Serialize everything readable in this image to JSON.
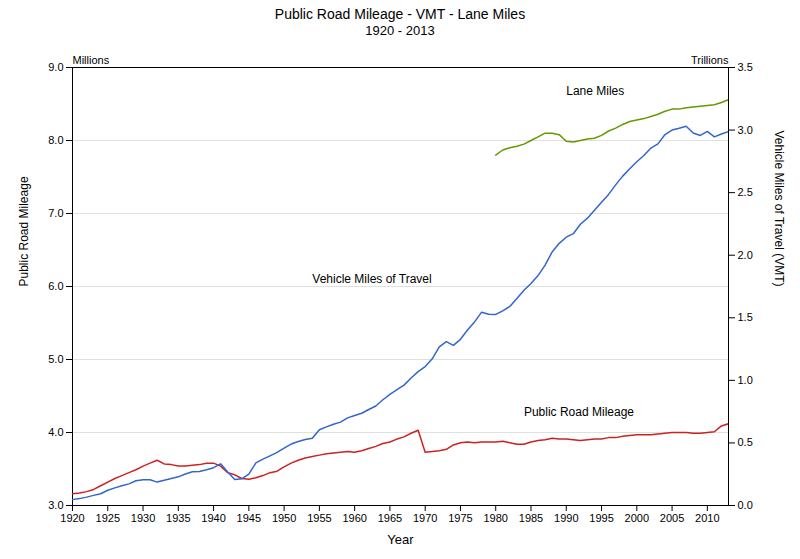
{
  "chart_data": {
    "type": "line",
    "title": "Public Road Mileage - VMT - Lane Miles",
    "subtitle": "1920 - 2013",
    "xlabel": "Year",
    "ylabel": "Public Road Mileage",
    "y2label": "Vehicle Miles of Travel (VMT)",
    "y_unit": "Millions",
    "y2_unit": "Trillions",
    "x": [
      1920,
      1921,
      1922,
      1923,
      1924,
      1925,
      1926,
      1927,
      1928,
      1929,
      1930,
      1931,
      1932,
      1933,
      1934,
      1935,
      1936,
      1937,
      1938,
      1939,
      1940,
      1941,
      1942,
      1943,
      1944,
      1945,
      1946,
      1947,
      1948,
      1949,
      1950,
      1951,
      1952,
      1953,
      1954,
      1955,
      1956,
      1957,
      1958,
      1959,
      1960,
      1961,
      1962,
      1963,
      1964,
      1965,
      1966,
      1967,
      1968,
      1969,
      1970,
      1971,
      1972,
      1973,
      1974,
      1975,
      1976,
      1977,
      1978,
      1979,
      1980,
      1981,
      1982,
      1983,
      1984,
      1985,
      1986,
      1987,
      1988,
      1989,
      1990,
      1991,
      1992,
      1993,
      1994,
      1995,
      1996,
      1997,
      1998,
      1999,
      2000,
      2001,
      2002,
      2003,
      2004,
      2005,
      2006,
      2007,
      2008,
      2009,
      2010,
      2011,
      2012,
      2013
    ],
    "series": [
      {
        "color": "#cc2222",
        "values": [
          3.16,
          3.17,
          3.19,
          3.22,
          3.27,
          3.32,
          3.37,
          3.41,
          3.45,
          3.49,
          3.54,
          3.58,
          3.62,
          3.57,
          3.56,
          3.54,
          3.54,
          3.55,
          3.56,
          3.58,
          3.58,
          3.54,
          3.45,
          3.42,
          3.37,
          3.36,
          3.38,
          3.41,
          3.45,
          3.47,
          3.53,
          3.58,
          3.62,
          3.65,
          3.67,
          3.69,
          3.71,
          3.72,
          3.73,
          3.74,
          3.73,
          3.75,
          3.78,
          3.81,
          3.85,
          3.87,
          3.91,
          3.94,
          3.99,
          4.03,
          3.73,
          3.74,
          3.75,
          3.77,
          3.83,
          3.86,
          3.87,
          3.86,
          3.87,
          3.87,
          3.87,
          3.88,
          3.86,
          3.84,
          3.84,
          3.87,
          3.89,
          3.9,
          3.92,
          3.91,
          3.91,
          3.9,
          3.89,
          3.9,
          3.91,
          3.91,
          3.93,
          3.93,
          3.95,
          3.96,
          3.97,
          3.97,
          3.97,
          3.98,
          3.99,
          4.0,
          4.0,
          4.0,
          3.99,
          3.99,
          4.0,
          4.01,
          4.09,
          4.12
        ]
      },
      {
        "color": "#3366cc",
        "axis": "y2",
        "values": [
          0.047,
          0.055,
          0.067,
          0.081,
          0.094,
          0.122,
          0.141,
          0.158,
          0.173,
          0.198,
          0.206,
          0.206,
          0.187,
          0.201,
          0.216,
          0.229,
          0.252,
          0.27,
          0.271,
          0.285,
          0.302,
          0.333,
          0.268,
          0.208,
          0.213,
          0.25,
          0.341,
          0.371,
          0.397,
          0.424,
          0.458,
          0.491,
          0.512,
          0.527,
          0.537,
          0.605,
          0.628,
          0.649,
          0.666,
          0.7,
          0.719,
          0.737,
          0.767,
          0.795,
          0.845,
          0.888,
          0.925,
          0.962,
          1.019,
          1.07,
          1.11,
          1.172,
          1.267,
          1.309,
          1.28,
          1.328,
          1.402,
          1.467,
          1.545,
          1.529,
          1.527,
          1.555,
          1.591,
          1.654,
          1.72,
          1.774,
          1.837,
          1.921,
          2.026,
          2.095,
          2.144,
          2.172,
          2.247,
          2.296,
          2.36,
          2.423,
          2.486,
          2.562,
          2.632,
          2.691,
          2.747,
          2.797,
          2.856,
          2.89,
          2.964,
          3.0,
          3.014,
          3.031,
          2.976,
          2.957,
          2.989,
          2.946,
          2.969,
          2.988
        ]
      },
      {
        "color": "#669900",
        "values": [
          null,
          null,
          null,
          null,
          null,
          null,
          null,
          null,
          null,
          null,
          null,
          null,
          null,
          null,
          null,
          null,
          null,
          null,
          null,
          null,
          null,
          null,
          null,
          null,
          null,
          null,
          null,
          null,
          null,
          null,
          null,
          null,
          null,
          null,
          null,
          null,
          null,
          null,
          null,
          null,
          null,
          null,
          null,
          null,
          null,
          null,
          null,
          null,
          null,
          null,
          null,
          null,
          null,
          null,
          null,
          null,
          null,
          null,
          null,
          null,
          7.8,
          7.87,
          7.9,
          7.92,
          7.95,
          8.0,
          8.05,
          8.1,
          8.1,
          8.08,
          7.99,
          7.98,
          8.0,
          8.02,
          8.03,
          8.07,
          8.13,
          8.17,
          8.22,
          8.26,
          8.28,
          8.3,
          8.33,
          8.36,
          8.4,
          8.43,
          8.43,
          8.45,
          8.46,
          8.47,
          8.48,
          8.49,
          8.52,
          8.56
        ]
      }
    ],
    "xlim": [
      1920,
      2013
    ],
    "xticks": [
      1920,
      1925,
      1930,
      1935,
      1940,
      1945,
      1950,
      1955,
      1960,
      1965,
      1970,
      1975,
      1980,
      1985,
      1990,
      1995,
      2000,
      2005,
      2010
    ],
    "ylim": [
      3.0,
      9.0
    ],
    "yticks": [
      {
        "value": 3,
        "label": "3.0"
      },
      {
        "value": 4,
        "label": "4.0"
      },
      {
        "value": 5,
        "label": "5.0"
      },
      {
        "value": 6,
        "label": "6.0"
      },
      {
        "value": 7,
        "label": "7.0"
      },
      {
        "value": 8,
        "label": "8.0"
      },
      {
        "value": 9,
        "label": "9.0"
      }
    ],
    "y2lim": [
      0.0,
      3.5
    ],
    "y2ticks": [
      {
        "value": 0,
        "label": "0.0"
      },
      0.5,
      {
        "value": 1,
        "label": "1.0"
      },
      1.5,
      {
        "value": 2,
        "label": "2.0"
      },
      2.5,
      {
        "value": 3,
        "label": "3.0"
      },
      3.5
    ],
    "grid": true,
    "annotations": [
      {
        "text": "Lane Miles",
        "x": 1990,
        "y": 8.62
      },
      {
        "text": "Vehicle Miles of Travel",
        "x": 1954,
        "y": 6.05
      },
      {
        "text": "Public Road Mileage",
        "x": 1984,
        "y": 4.22
      }
    ]
  }
}
